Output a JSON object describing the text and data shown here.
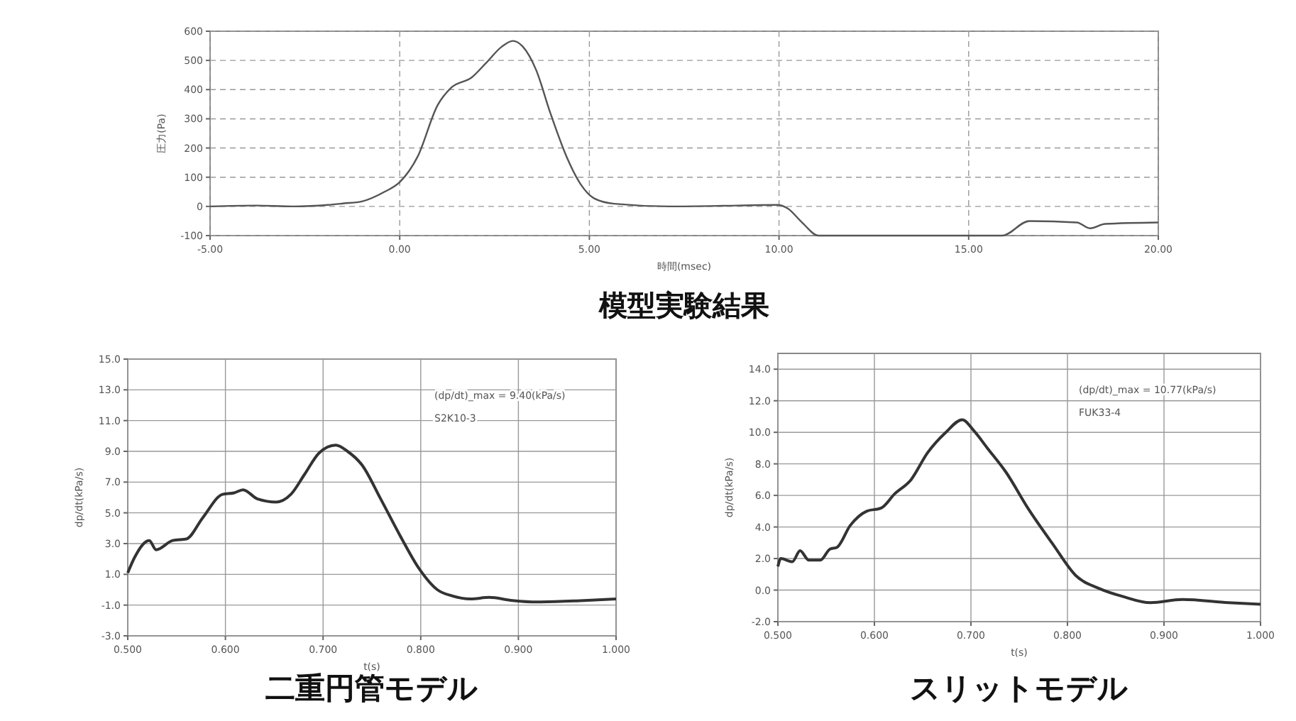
{
  "chart_data": [
    {
      "type": "line",
      "title": "模型実験結果",
      "xlabel": "時間(msec)",
      "ylabel": "圧力(Pa)",
      "grid": true,
      "xlim": [
        -5,
        20
      ],
      "xticks": [
        {
          "value": -5,
          "label": "-5.00"
        },
        {
          "value": 0,
          "label": "0.00"
        },
        {
          "value": 5,
          "label": "5.00"
        },
        {
          "value": 10,
          "label": "10.00"
        },
        {
          "value": 15,
          "label": "15.00"
        },
        {
          "value": 20,
          "label": "20.00"
        }
      ],
      "ylim": [
        -100,
        600
      ],
      "yticks": [
        -100,
        0,
        100,
        200,
        300,
        400,
        500,
        600
      ],
      "series": [
        {
          "color": "#555555",
          "x": [
            -5,
            -3.8,
            -2.8,
            -1.9,
            -1.5,
            -1,
            -0.4,
            0,
            0.47,
            1,
            1.36,
            1.9,
            2.26,
            2.7,
            2.98,
            3.24,
            3.6,
            3.96,
            4.4,
            4.77,
            5.12,
            5.66,
            7.1,
            8.9,
            9.96,
            10.23,
            10.6,
            11.04,
            13,
            15.88,
            16.6,
            17.85,
            18.2,
            18.6,
            20
          ],
          "values": [
            0,
            3,
            0,
            5,
            10,
            17,
            50,
            83,
            170,
            347,
            407,
            442,
            489,
            548,
            567,
            548,
            466,
            324,
            170,
            76,
            28,
            9,
            0,
            3,
            5,
            -7,
            -54,
            -100,
            -100,
            -100,
            -50,
            -55,
            -75,
            -60,
            -55
          ]
        }
      ]
    },
    {
      "type": "line",
      "title": "二重円管モデル",
      "xlabel": "t(s)",
      "ylabel": "dp/dt(kPa/s)",
      "grid": true,
      "annotations": [
        "(dp/dt)_max = 9.40(kPa/s)",
        "S2K10-3"
      ],
      "xlim": [
        0.5,
        1
      ],
      "xticks": [
        {
          "value": 0.5,
          "label": "0.500"
        },
        {
          "value": 0.6,
          "label": "0.600"
        },
        {
          "value": 0.7,
          "label": "0.700"
        },
        {
          "value": 0.8,
          "label": "0.800"
        },
        {
          "value": 0.9,
          "label": "0.900"
        },
        {
          "value": 1,
          "label": "1.000"
        }
      ],
      "ylim": [
        -3,
        15
      ],
      "yticks": [
        {
          "value": -3,
          "label": "-3.0"
        },
        {
          "value": -1,
          "label": "-1.0"
        },
        {
          "value": 1,
          "label": "1.0"
        },
        {
          "value": 3,
          "label": "3.0"
        },
        {
          "value": 5,
          "label": "5.0"
        },
        {
          "value": 7,
          "label": "7.0"
        },
        {
          "value": 9,
          "label": "9.0"
        },
        {
          "value": 11,
          "label": "11.0"
        },
        {
          "value": 13,
          "label": "13.0"
        },
        {
          "value": 15,
          "label": "15.0"
        }
      ],
      "series": [
        {
          "color": "#333333",
          "x": [
            0.5,
            0.507,
            0.522,
            0.529,
            0.546,
            0.56,
            0.577,
            0.597,
            0.609,
            0.618,
            0.633,
            0.652,
            0.667,
            0.681,
            0.696,
            0.713,
            0.725,
            0.74,
            0.759,
            0.779,
            0.798,
            0.817,
            0.832,
            0.851,
            0.87,
            0.894,
            0.919,
            0.967,
            1
          ],
          "values": [
            1.1,
            2.1,
            3.2,
            2.6,
            3.2,
            3.3,
            4.7,
            6.2,
            6.3,
            6.5,
            5.9,
            5.7,
            6.2,
            7.5,
            8.9,
            9.4,
            9,
            8.1,
            5.9,
            3.5,
            1.4,
            0,
            -0.4,
            -0.6,
            -0.5,
            -0.7,
            -0.8,
            -0.7,
            -0.6
          ]
        }
      ]
    },
    {
      "type": "line",
      "title": "スリットモデル",
      "xlabel": "t(s)",
      "ylabel": "dp/dt(kPa/s)",
      "grid": true,
      "annotations": [
        "(dp/dt)_max = 10.77(kPa/s)",
        "FUK33-4"
      ],
      "xlim": [
        0.5,
        1
      ],
      "xticks": [
        {
          "value": 0.5,
          "label": "0.500"
        },
        {
          "value": 0.6,
          "label": "0.600"
        },
        {
          "value": 0.7,
          "label": "0.700"
        },
        {
          "value": 0.8,
          "label": "0.800"
        },
        {
          "value": 0.9,
          "label": "0.900"
        },
        {
          "value": 1,
          "label": "1.000"
        }
      ],
      "ylim": [
        -2,
        15
      ],
      "yticks": [
        {
          "value": -2,
          "label": "-2.0"
        },
        {
          "value": 0,
          "label": "0.0"
        },
        {
          "value": 2,
          "label": "2.0"
        },
        {
          "value": 4,
          "label": "4.0"
        },
        {
          "value": 6,
          "label": "6.0"
        },
        {
          "value": 8,
          "label": "8.0"
        },
        {
          "value": 10,
          "label": "10.0"
        },
        {
          "value": 12,
          "label": "12.0"
        },
        {
          "value": 14,
          "label": "14.0"
        }
      ],
      "series": [
        {
          "color": "#333333",
          "x": [
            0.5,
            0.503,
            0.515,
            0.523,
            0.532,
            0.544,
            0.554,
            0.561,
            0.575,
            0.592,
            0.607,
            0.621,
            0.638,
            0.655,
            0.674,
            0.691,
            0.703,
            0.717,
            0.736,
            0.76,
            0.785,
            0.809,
            0.833,
            0.857,
            0.886,
            0.919,
            0.967,
            1
          ],
          "values": [
            1.5,
            2,
            1.8,
            2.5,
            1.9,
            1.9,
            2.6,
            2.7,
            4.1,
            5,
            5.2,
            6.1,
            7,
            8.7,
            10,
            10.8,
            10.1,
            9,
            7.5,
            5.1,
            2.9,
            0.9,
            0.1,
            -0.4,
            -0.8,
            -0.6,
            -0.8,
            -0.9
          ]
        }
      ]
    }
  ]
}
